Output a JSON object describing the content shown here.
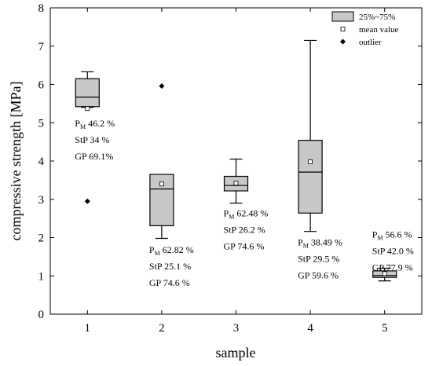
{
  "chart_data": {
    "type": "box",
    "xlabel": "sample",
    "ylabel": "compressive strength [MPa]",
    "categories": [
      "1",
      "2",
      "3",
      "4",
      "5"
    ],
    "ylim": [
      0,
      8
    ],
    "xlim": [
      0.5,
      5.5
    ],
    "yticks": [
      "0",
      "1",
      "2",
      "3",
      "4",
      "5",
      "6",
      "7",
      "8"
    ],
    "grid": false,
    "legend": {
      "placement": "top-right",
      "entries": [
        {
          "label": "25%~75%",
          "symbol": "box"
        },
        {
          "label": "mean value",
          "symbol": "open-square"
        },
        {
          "label": "outlier",
          "symbol": "diamond"
        }
      ]
    },
    "colors": {
      "box_fill": "#c8c8c8",
      "stroke": "#000000"
    },
    "boxes": [
      {
        "sample": "1",
        "whisker_low": 5.4,
        "q1": 5.42,
        "median": 5.67,
        "q3": 6.15,
        "whisker_high": 6.33,
        "mean": 5.37,
        "outliers": [
          2.95
        ],
        "annotation": [
          {
            "main": "P",
            "sub": "M",
            "rest": " 46.2 %"
          },
          {
            "main": "StP 34 %"
          },
          {
            "main": "GP 69.1%"
          }
        ],
        "annotation_anchor": 4.9
      },
      {
        "sample": "2",
        "whisker_low": 1.98,
        "q1": 2.31,
        "median": 3.27,
        "q3": 3.65,
        "whisker_high": 3.65,
        "mean": 3.4,
        "outliers": [
          5.96
        ],
        "annotation": [
          {
            "main": "P",
            "sub": "M",
            "rest": " 62.82 %"
          },
          {
            "main": "StP 25.1 %"
          },
          {
            "main": "GP 74.6 %"
          }
        ],
        "annotation_anchor": 1.6
      },
      {
        "sample": "3",
        "whisker_low": 2.9,
        "q1": 3.22,
        "median": 3.36,
        "q3": 3.6,
        "whisker_high": 4.05,
        "mean": 3.42,
        "outliers": [],
        "annotation": [
          {
            "main": "P",
            "sub": "M",
            "rest": " 62.48 %"
          },
          {
            "main": "StP 26.2 %"
          },
          {
            "main": "GP 74.6 %"
          }
        ],
        "annotation_anchor": 2.55
      },
      {
        "sample": "4",
        "whisker_low": 2.16,
        "q1": 2.64,
        "median": 3.71,
        "q3": 4.54,
        "whisker_high": 7.15,
        "mean": 3.98,
        "outliers": [],
        "annotation": [
          {
            "main": "P",
            "sub": "M",
            "rest": " 38.49 %"
          },
          {
            "main": "StP 29.5 %"
          },
          {
            "main": "GP 59.6 %"
          }
        ],
        "annotation_anchor": 1.8
      },
      {
        "sample": "5",
        "whisker_low": 0.87,
        "q1": 0.96,
        "median": 1.01,
        "q3": 1.13,
        "whisker_high": 1.2,
        "mean": 1.06,
        "outliers": [],
        "annotation": [
          {
            "main": "P",
            "sub": "M",
            "rest": " 56.6 %"
          },
          {
            "main": "StP 42.0 %"
          },
          {
            "main": "GP 77.9 %"
          }
        ],
        "annotation_anchor": 2.0
      }
    ]
  }
}
